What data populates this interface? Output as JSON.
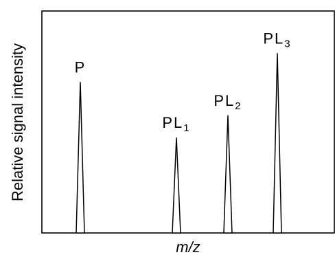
{
  "chart_data": {
    "type": "peak-spectrum",
    "xlabel": "m/z",
    "ylabel": "Relative signal intensity",
    "grid": false,
    "legend": "none",
    "peaks": [
      {
        "base": "P",
        "sub": "",
        "x": 1,
        "value": 0.68
      },
      {
        "base": "PL",
        "sub": "1",
        "x": 2,
        "value": 0.43
      },
      {
        "base": "PL",
        "sub": "2",
        "x": 3,
        "value": 0.53
      },
      {
        "base": "PL",
        "sub": "3",
        "x": 4,
        "value": 0.81
      }
    ]
  }
}
